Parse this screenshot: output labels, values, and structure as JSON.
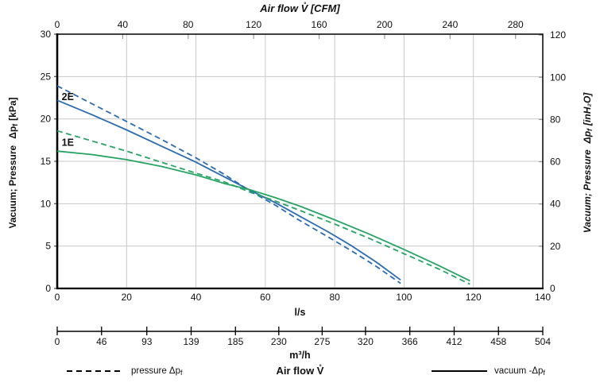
{
  "colors": {
    "blue": "#2a6cb3",
    "green": "#27a463",
    "grid": "#c9c9c9",
    "axis": "#000000",
    "tick_minor": "#999999"
  },
  "chart_data": {
    "type": "line",
    "title": "Air flow V̊ [CFM]",
    "top_axis": {
      "title": "Air flow V̊ [CFM]",
      "unit": "CFM",
      "ticks": [
        0,
        40,
        80,
        120,
        160,
        200,
        240,
        280
      ]
    },
    "x_axis_ls": {
      "title": "l/s",
      "ticks": [
        0,
        20,
        40,
        60,
        80,
        100,
        120,
        140
      ],
      "range": [
        0,
        140
      ],
      "grid": true
    },
    "x_axis_m3h": {
      "title": "m³/h",
      "ticks": [
        0,
        46,
        93,
        139,
        185,
        230,
        275,
        320,
        366,
        412,
        458,
        504
      ],
      "range": [
        0,
        504
      ]
    },
    "y_axis_kpa": {
      "title_main": "Vacuum; Pressure",
      "title_sym": "Δp",
      "title_sub": "f",
      "title_unit": "[kPa]",
      "ticks": [
        0,
        5,
        10,
        15,
        20,
        25,
        30
      ],
      "range": [
        0,
        30
      ],
      "grid": true
    },
    "y_axis_inh2o": {
      "title_main": "Vacuum; Pressure",
      "title_sym": "Δp",
      "title_sub": "f",
      "title_unit": "[inH₂O]",
      "ticks": [
        0,
        20,
        40,
        60,
        80,
        100,
        120
      ],
      "kpa_per_unit": 0.2491
    },
    "bottom_title": "Air flow V̊",
    "legend": {
      "pressure_label": "pressure Δp",
      "pressure_sub": "f",
      "vacuum_label": "vacuum -Δp",
      "vacuum_sub": "f"
    },
    "curve_labels": [
      {
        "text": "2E",
        "color": "#2a6cb3",
        "x_ls": 1.3,
        "y_kpa": 22.6
      },
      {
        "text": "1E",
        "color": "#27a463",
        "x_ls": 1.3,
        "y_kpa": 17.2
      }
    ],
    "series": [
      {
        "name": "2E pressure",
        "style": "dashed",
        "color": "#2a6cb3",
        "points": [
          [
            0,
            23.9
          ],
          [
            10,
            21.8
          ],
          [
            20,
            19.7
          ],
          [
            30,
            17.6
          ],
          [
            40,
            15.4
          ],
          [
            48,
            13.5
          ],
          [
            56,
            11.4
          ],
          [
            63,
            9.8
          ],
          [
            70,
            8.0
          ],
          [
            78,
            6.1
          ],
          [
            85,
            4.4
          ],
          [
            92,
            2.6
          ],
          [
            99,
            0.6
          ]
        ]
      },
      {
        "name": "2E vacuum",
        "style": "solid",
        "color": "#2a6cb3",
        "points": [
          [
            0,
            22.2
          ],
          [
            10,
            20.5
          ],
          [
            20,
            18.7
          ],
          [
            30,
            16.8
          ],
          [
            40,
            14.9
          ],
          [
            48,
            13.2
          ],
          [
            56,
            11.5
          ],
          [
            63,
            10.1
          ],
          [
            70,
            8.5
          ],
          [
            78,
            6.7
          ],
          [
            85,
            5.0
          ],
          [
            92,
            3.1
          ],
          [
            99,
            1.0
          ]
        ]
      },
      {
        "name": "1E pressure",
        "style": "dashed",
        "color": "#27a463",
        "points": [
          [
            0,
            18.6
          ],
          [
            10,
            17.4
          ],
          [
            20,
            16.2
          ],
          [
            30,
            14.9
          ],
          [
            40,
            13.6
          ],
          [
            48,
            12.6
          ],
          [
            56,
            11.3
          ],
          [
            63,
            10.3
          ],
          [
            70,
            9.2
          ],
          [
            80,
            7.6
          ],
          [
            90,
            5.9
          ],
          [
            100,
            4.1
          ],
          [
            110,
            2.3
          ],
          [
            119,
            0.5
          ]
        ]
      },
      {
        "name": "1E vacuum",
        "style": "solid",
        "color": "#27a463",
        "points": [
          [
            0,
            16.2
          ],
          [
            10,
            15.8
          ],
          [
            20,
            15.2
          ],
          [
            30,
            14.4
          ],
          [
            40,
            13.4
          ],
          [
            48,
            12.4
          ],
          [
            56,
            11.6
          ],
          [
            63,
            10.7
          ],
          [
            70,
            9.7
          ],
          [
            80,
            8.1
          ],
          [
            90,
            6.4
          ],
          [
            100,
            4.6
          ],
          [
            110,
            2.7
          ],
          [
            119,
            0.9
          ]
        ]
      }
    ]
  }
}
